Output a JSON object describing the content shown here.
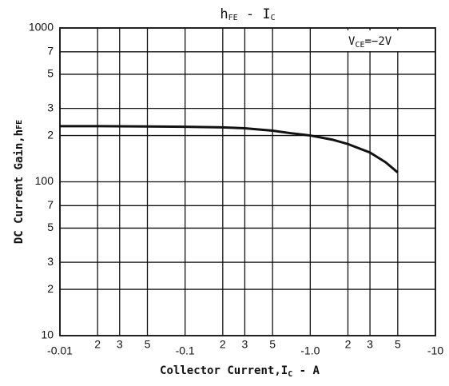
{
  "chart_data": {
    "type": "line",
    "title": [
      "h",
      "FE",
      " - I",
      "C"
    ],
    "annotation": [
      "V",
      "CE",
      "=−2V"
    ],
    "x_label": [
      "Collector Current,I",
      "C",
      " - A"
    ],
    "y_label": [
      "DC Current Gain,h",
      "FE"
    ],
    "x_scale": "log",
    "y_scale": "log",
    "grid": true,
    "x": [
      -0.01,
      -0.02,
      -0.05,
      -0.1,
      -0.2,
      -0.3,
      -0.5,
      -0.7,
      -1,
      -1.5,
      -2,
      -3,
      -4,
      -5
    ],
    "series": [
      {
        "color": "#111111",
        "values": [
          230,
          230,
          229,
          228,
          226,
          223,
          215,
          207,
          200,
          188,
          176,
          155,
          134,
          115
        ]
      }
    ],
    "xlim": [
      -0.01,
      -10
    ],
    "xticks": [
      {
        "value": -0.01,
        "label": "-0.01"
      },
      {
        "value": -0.02,
        "label": "2"
      },
      {
        "value": -0.03,
        "label": "3"
      },
      {
        "value": -0.05,
        "label": "5"
      },
      {
        "value": -0.1,
        "label": "-0.1"
      },
      {
        "value": -0.2,
        "label": "2"
      },
      {
        "value": -0.3,
        "label": "3"
      },
      {
        "value": -0.5,
        "label": "5"
      },
      {
        "value": -1,
        "label": "-1.0"
      },
      {
        "value": -2,
        "label": "2"
      },
      {
        "value": -3,
        "label": "3"
      },
      {
        "value": -5,
        "label": "5"
      },
      -10
    ],
    "ylim": [
      10,
      1000
    ],
    "yticks": [
      10,
      {
        "value": 20,
        "label": "2"
      },
      {
        "value": 30,
        "label": "3"
      },
      {
        "value": 50,
        "label": "5"
      },
      {
        "value": 70,
        "label": "7"
      },
      100,
      {
        "value": 200,
        "label": "2"
      },
      {
        "value": 300,
        "label": "3"
      },
      {
        "value": 500,
        "label": "5"
      },
      {
        "value": 700,
        "label": "7"
      },
      1000
    ]
  }
}
